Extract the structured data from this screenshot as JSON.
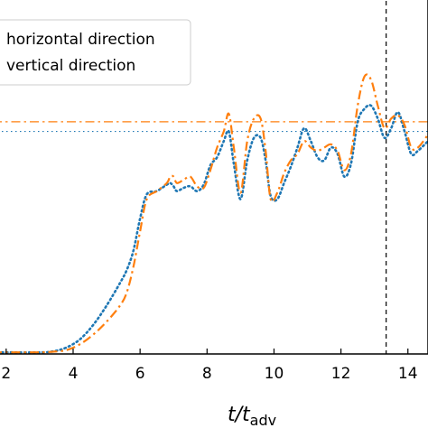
{
  "chart_data": {
    "type": "line",
    "xlabel": {
      "main": "t/t",
      "sub": "adv"
    },
    "xlim": [
      1.6,
      14.6
    ],
    "ylim": [
      0,
      1.12
    ],
    "xticks": [
      2,
      4,
      6,
      8,
      10,
      12,
      14
    ],
    "xtick_labels": [
      "2",
      "4",
      "6",
      "8",
      "10",
      "12",
      "14"
    ],
    "legend": {
      "placement": "upper-left"
    },
    "series": [
      {
        "name": "horizontal direction",
        "color": "#1f77b4",
        "style": "dotted",
        "x": [
          1.6,
          2.0,
          3.0,
          3.4,
          3.8,
          4.2,
          4.6,
          5.0,
          5.4,
          5.6,
          5.8,
          6.0,
          6.2,
          6.5,
          6.8,
          6.9,
          7.0,
          7.1,
          7.3,
          7.5,
          7.7,
          7.9,
          8.1,
          8.3,
          8.5,
          8.65,
          8.8,
          9.0,
          9.2,
          9.4,
          9.6,
          9.75,
          9.9,
          10.1,
          10.3,
          10.5,
          10.7,
          10.9,
          11.1,
          11.3,
          11.5,
          11.7,
          11.9,
          12.1,
          12.3,
          12.5,
          12.7,
          12.9,
          13.1,
          13.3,
          13.5,
          13.7,
          13.9,
          14.1,
          14.3,
          14.6
        ],
        "y": [
          0.005,
          0.005,
          0.005,
          0.008,
          0.02,
          0.045,
          0.09,
          0.15,
          0.22,
          0.26,
          0.32,
          0.42,
          0.495,
          0.505,
          0.525,
          0.53,
          0.52,
          0.505,
          0.515,
          0.52,
          0.505,
          0.525,
          0.585,
          0.61,
          0.66,
          0.69,
          0.59,
          0.48,
          0.6,
          0.67,
          0.67,
          0.6,
          0.49,
          0.48,
          0.53,
          0.58,
          0.64,
          0.7,
          0.66,
          0.61,
          0.6,
          0.64,
          0.62,
          0.55,
          0.59,
          0.72,
          0.76,
          0.77,
          0.73,
          0.67,
          0.7,
          0.75,
          0.69,
          0.62,
          0.63,
          0.66
        ]
      },
      {
        "name": "vertical direction",
        "color": "#ff7f0e",
        "style": "dash-dot",
        "x": [
          1.6,
          2.0,
          3.0,
          3.4,
          3.8,
          4.2,
          4.6,
          5.0,
          5.4,
          5.6,
          5.8,
          6.0,
          6.2,
          6.5,
          6.8,
          6.9,
          7.0,
          7.1,
          7.3,
          7.5,
          7.7,
          7.9,
          8.1,
          8.3,
          8.5,
          8.65,
          8.8,
          9.0,
          9.2,
          9.4,
          9.6,
          9.75,
          9.9,
          10.1,
          10.3,
          10.5,
          10.7,
          10.9,
          11.1,
          11.3,
          11.5,
          11.7,
          11.9,
          12.1,
          12.3,
          12.5,
          12.7,
          12.9,
          13.1,
          13.3,
          13.5,
          13.7,
          13.9,
          14.1,
          14.3,
          14.6
        ],
        "y": [
          0.005,
          0.005,
          0.005,
          0.007,
          0.012,
          0.03,
          0.06,
          0.1,
          0.15,
          0.19,
          0.27,
          0.38,
          0.48,
          0.505,
          0.53,
          0.55,
          0.55,
          0.53,
          0.54,
          0.55,
          0.52,
          0.515,
          0.57,
          0.64,
          0.69,
          0.745,
          0.64,
          0.5,
          0.66,
          0.73,
          0.73,
          0.63,
          0.48,
          0.5,
          0.56,
          0.6,
          0.62,
          0.66,
          0.64,
          0.63,
          0.64,
          0.65,
          0.63,
          0.57,
          0.62,
          0.77,
          0.86,
          0.85,
          0.77,
          0.7,
          0.73,
          0.74,
          0.71,
          0.64,
          0.64,
          0.68
        ]
      }
    ],
    "reference_lines": [
      {
        "orientation": "horizontal",
        "y": 0.72,
        "color": "#ff7f0e",
        "style": "dash-dot"
      },
      {
        "orientation": "horizontal",
        "y": 0.69,
        "color": "#1f77b4",
        "style": "dotted"
      },
      {
        "orientation": "vertical",
        "x": 13.35,
        "color": "#000000",
        "style": "dashed"
      }
    ],
    "grid": false
  }
}
